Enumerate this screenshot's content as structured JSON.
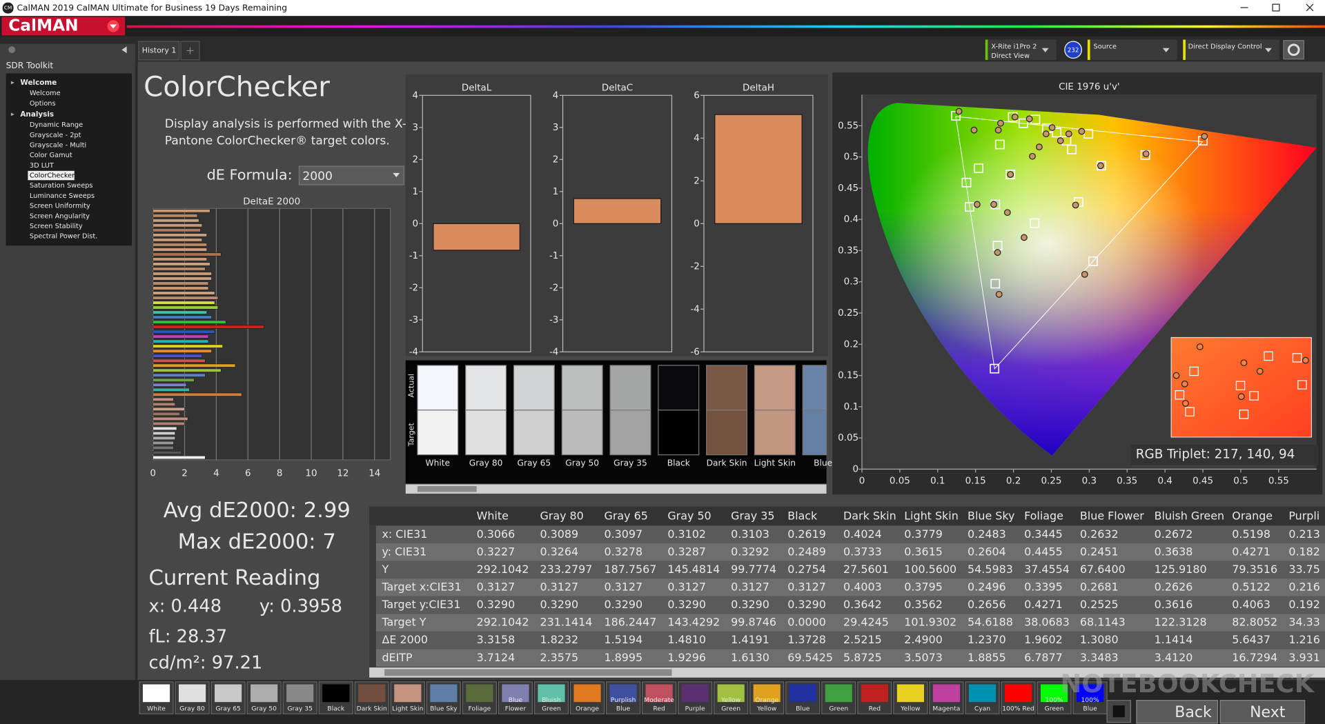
{
  "window": {
    "icon": "CM",
    "title": "CalMAN 2019 CalMAN Ultimate for Business 19 Days Remaining",
    "logo": "CalMAN"
  },
  "tabs": [
    "History 1"
  ],
  "devices": {
    "meter": [
      "X-Rite i1Pro 2",
      "Direct View"
    ],
    "badge": "232",
    "source": "Source",
    "display": "Direct Display Control"
  },
  "sidebar": {
    "title": "SDR Toolkit",
    "groups": [
      {
        "name": "Welcome",
        "items": [
          "Welcome",
          "Options"
        ]
      },
      {
        "name": "Analysis",
        "items": [
          "Dynamic Range",
          "Grayscale - 2pt",
          "Grayscale - Multi",
          "Color Gamut",
          "3D LUT",
          "ColorChecker",
          "Saturation Sweeps",
          "Luminance Sweeps",
          "Screen Uniformity",
          "Screen Angularity",
          "Screen Stability",
          "Spectral Power Dist."
        ],
        "selected": 5
      }
    ]
  },
  "page": {
    "heading": "ColorChecker",
    "description": [
      "Display analysis is performed with the X-Rite/",
      "Pantone ColorChecker® target colors."
    ],
    "formula_label": "dE Formula:",
    "formula_value": "2000"
  },
  "stats": {
    "avg": "Avg dE2000: 2.99",
    "max": "Max dE2000: 7",
    "reading_title": "Current Reading",
    "x": "x: 0.448",
    "y": "y: 0.3958",
    "fl": "fL: 28.37",
    "cdm2": "cd/m²: 97.21"
  },
  "chart_data": [
    {
      "type": "bar",
      "orientation": "horizontal",
      "title": "DeltaE 2000",
      "values": [
        3.6,
        2.8,
        2.9,
        3.1,
        3.0,
        3.4,
        3.1,
        3.4,
        3.4,
        4.3,
        3.4,
        3.6,
        3.3,
        3.7,
        3.7,
        3.5,
        3.5,
        3.9,
        4.1,
        3.9,
        4.1,
        3.4,
        3.7,
        4.6,
        7.0,
        3.9,
        3.5,
        3.5,
        4.4,
        3.7,
        3.1,
        3.3,
        5.2,
        4.3,
        3.3,
        2.6,
        2.1,
        2.3,
        5.6,
        1.3,
        1.4,
        2.0,
        1.7,
        2.2,
        2.0,
        1.5,
        1.4,
        1.4,
        1.3,
        1.3,
        1.8,
        3.3
      ],
      "colors": [
        "#c49a78",
        "#b88a68",
        "#c8a080",
        "#c49a78",
        "#b07a60",
        "#c8a080",
        "#c49a78",
        "#b88a68",
        "#c8a080",
        "#b07050",
        "#c49a78",
        "#c8a080",
        "#b88a68",
        "#c49a78",
        "#c8a080",
        "#b88a68",
        "#c49a78",
        "#c8a080",
        "#b88a68",
        "#d8d840",
        "#9acd32",
        "#40c0a0",
        "#4080c0",
        "#30c030",
        "#d02020",
        "#3050c0",
        "#c040c0",
        "#20b0c0",
        "#e0d020",
        "#e09030",
        "#5050d0",
        "#d05050",
        "#e0a020",
        "#a0c040",
        "#6080c0",
        "#70a050",
        "#8080d0",
        "#40b0a0",
        "#d08040",
        "#c09080",
        "#b08070",
        "#c8a090",
        "#a07060",
        "#c09080",
        "#b08070",
        "#e0e0e0",
        "#cccccc",
        "#b0b0b0",
        "#999999",
        "#777777",
        "#555555",
        "#f0f0f0"
      ],
      "xlim": [
        0,
        15
      ],
      "xticks": [
        0,
        2,
        4,
        6,
        8,
        10,
        12,
        14
      ],
      "grid": true
    },
    {
      "type": "bar",
      "title": "DeltaL",
      "values": [
        -0.83
      ],
      "color": "#d98c5e",
      "ylim": [
        -4,
        4
      ],
      "yticks": [
        -4,
        -3,
        -2,
        -1,
        0,
        1,
        2,
        3,
        4
      ]
    },
    {
      "type": "bar",
      "title": "DeltaC",
      "values": [
        0.78
      ],
      "color": "#d98c5e",
      "ylim": [
        -4,
        4
      ],
      "yticks": [
        -4,
        -3,
        -2,
        -1,
        0,
        1,
        2,
        3,
        4
      ]
    },
    {
      "type": "bar",
      "title": "DeltaH",
      "values": [
        5.1
      ],
      "color": "#d98c5e",
      "ylim": [
        -6,
        6
      ],
      "yticks": [
        -6,
        -4,
        -2,
        0,
        2,
        4,
        6
      ]
    },
    {
      "type": "scatter",
      "title": "CIE 1976 u'v'",
      "xlim": [
        0,
        0.6
      ],
      "ylim": [
        0,
        0.6
      ],
      "xticks": [
        0,
        0.05,
        0.1,
        0.15,
        0.2,
        0.25,
        0.3,
        0.35,
        0.4,
        0.45,
        0.5,
        0.55
      ],
      "yticks": [
        0,
        0.05,
        0.1,
        0.15,
        0.2,
        0.25,
        0.3,
        0.35,
        0.4,
        0.45,
        0.5,
        0.55
      ],
      "annotation": "RGB Triplet: 217, 140, 94",
      "series": [
        {
          "marker": "square",
          "color": "#ffffff",
          "x": [
            0.124,
            0.138,
            0.154,
            0.142,
            0.176,
            0.182,
            0.199,
            0.213,
            0.196,
            0.228,
            0.229,
            0.244,
            0.257,
            0.27,
            0.277,
            0.286,
            0.299,
            0.316,
            0.305,
            0.374,
            0.45,
            0.179,
            0.176,
            0.175
          ],
          "y": [
            0.566,
            0.459,
            0.482,
            0.42,
            0.424,
            0.52,
            0.564,
            0.554,
            0.472,
            0.394,
            0.56,
            0.546,
            0.539,
            0.526,
            0.512,
            0.428,
            0.537,
            0.486,
            0.333,
            0.503,
            0.526,
            0.358,
            0.297,
            0.161
          ]
        },
        {
          "marker": "circle",
          "color": "#c8946a",
          "x": [
            0.128,
            0.148,
            0.152,
            0.174,
            0.18,
            0.183,
            0.196,
            0.202,
            0.221,
            0.225,
            0.234,
            0.243,
            0.251,
            0.262,
            0.273,
            0.29,
            0.192,
            0.214,
            0.282,
            0.294,
            0.315,
            0.375,
            0.452,
            0.179,
            0.181
          ],
          "y": [
            0.573,
            0.543,
            0.424,
            0.424,
            0.543,
            0.554,
            0.472,
            0.564,
            0.561,
            0.501,
            0.516,
            0.537,
            0.547,
            0.526,
            0.537,
            0.541,
            0.411,
            0.371,
            0.423,
            0.312,
            0.486,
            0.505,
            0.533,
            0.347,
            0.28
          ]
        }
      ]
    }
  ],
  "swatch_panel": {
    "actual_label": "Actual",
    "target_label": "Target",
    "swatches": [
      {
        "name": "White",
        "actual": "#f4f5fa",
        "target": "#f2f2f2"
      },
      {
        "name": "Gray 80",
        "actual": "#e2e4e6",
        "target": "#e0e0e0"
      },
      {
        "name": "Gray 65",
        "actual": "#d0d2d3",
        "target": "#cfcfcf"
      },
      {
        "name": "Gray 50",
        "actual": "#bcbdbd",
        "target": "#bbbbbb"
      },
      {
        "name": "Gray 35",
        "actual": "#a5a6a6",
        "target": "#a3a3a3"
      },
      {
        "name": "Black",
        "actual": "#0a0a0c",
        "target": "#000000"
      },
      {
        "name": "Dark Skin",
        "actual": "#7a5846",
        "target": "#73523f"
      },
      {
        "name": "Light Skin",
        "actual": "#c79a86",
        "target": "#c2967f"
      },
      {
        "name": "Blue",
        "actual": "#6a84a8",
        "target": "#6580a5"
      }
    ]
  },
  "table": {
    "header": [
      "White",
      "Gray 80",
      "Gray 65",
      "Gray 50",
      "Gray 35",
      "Black",
      "Dark Skin",
      "Light Skin",
      "Blue Sky",
      "Foliage",
      "Blue Flower",
      "Bluish Green",
      "Orange",
      "Purpli"
    ],
    "rows": [
      [
        "x: CIE31",
        "0.3066",
        "0.3089",
        "0.3097",
        "0.3102",
        "0.3103",
        "0.2619",
        "0.4024",
        "0.3779",
        "0.2483",
        "0.3445",
        "0.2632",
        "0.2672",
        "0.5198",
        "0.213"
      ],
      [
        "y: CIE31",
        "0.3227",
        "0.3264",
        "0.3278",
        "0.3287",
        "0.3292",
        "0.2489",
        "0.3733",
        "0.3615",
        "0.2604",
        "0.4455",
        "0.2451",
        "0.3638",
        "0.4271",
        "0.182"
      ],
      [
        "Y",
        "292.1042",
        "233.2797",
        "187.7567",
        "145.4814",
        "99.7774",
        "0.2754",
        "27.5601",
        "100.5600",
        "54.5983",
        "37.4554",
        "67.6400",
        "125.9180",
        "79.3516",
        "33.75"
      ],
      [
        "Target x:CIE31",
        "0.3127",
        "0.3127",
        "0.3127",
        "0.3127",
        "0.3127",
        "0.3127",
        "0.4003",
        "0.3795",
        "0.2496",
        "0.3395",
        "0.2681",
        "0.2626",
        "0.5122",
        "0.216"
      ],
      [
        "Target y:CIE31",
        "0.3290",
        "0.3290",
        "0.3290",
        "0.3290",
        "0.3290",
        "0.3290",
        "0.3642",
        "0.3562",
        "0.2656",
        "0.4271",
        "0.2525",
        "0.3616",
        "0.4063",
        "0.192"
      ],
      [
        "Target Y",
        "292.1042",
        "231.1414",
        "186.2447",
        "143.4292",
        "99.8746",
        "0.0000",
        "29.4245",
        "101.9302",
        "54.6188",
        "38.0683",
        "68.1143",
        "122.3128",
        "82.8052",
        "34.33"
      ],
      [
        "ΔE 2000",
        "3.3158",
        "1.8232",
        "1.5194",
        "1.4810",
        "1.4191",
        "1.3728",
        "2.5215",
        "2.4900",
        "1.2370",
        "1.9602",
        "1.3080",
        "1.1414",
        "5.6437",
        "1.216"
      ],
      [
        "dEITP",
        "3.7124",
        "2.3575",
        "1.8995",
        "1.9296",
        "1.6130",
        "69.5425",
        "5.8725",
        "3.5073",
        "1.8855",
        "6.7877",
        "3.3483",
        "3.4120",
        "16.7294",
        "3.931"
      ]
    ]
  },
  "strip": [
    {
      "label": [
        "White"
      ],
      "color": "#ffffff"
    },
    {
      "label": [
        "Gray 80"
      ],
      "color": "#e0e0e0"
    },
    {
      "label": [
        "Gray 65"
      ],
      "color": "#c8c8c8"
    },
    {
      "label": [
        "Gray 50"
      ],
      "color": "#adadad"
    },
    {
      "label": [
        "Gray 35"
      ],
      "color": "#888888"
    },
    {
      "label": [
        "Black"
      ],
      "color": "#000000"
    },
    {
      "label": [
        "Dark Skin"
      ],
      "color": "#734f3f"
    },
    {
      "label": [
        "Light Skin"
      ],
      "color": "#c59480"
    },
    {
      "label": [
        "Blue Sky"
      ],
      "color": "#5f7fa8"
    },
    {
      "label": [
        "Foliage"
      ],
      "color": "#5a6b3e"
    },
    {
      "label": [
        "Blue",
        "Flower"
      ],
      "color": "#8080b0"
    },
    {
      "label": [
        "Bluish",
        "Green"
      ],
      "color": "#60c0a8"
    },
    {
      "label": [
        "Orange"
      ],
      "color": "#e07a20"
    },
    {
      "label": [
        "Purplish",
        "Blue"
      ],
      "color": "#4050a0"
    },
    {
      "label": [
        "Moderate",
        "Red"
      ],
      "color": "#c05060"
    },
    {
      "label": [
        "Purple"
      ],
      "color": "#5a3070"
    },
    {
      "label": [
        "Yellow",
        "Green"
      ],
      "color": "#a0c040"
    },
    {
      "label": [
        "Orange",
        "Yellow"
      ],
      "color": "#e0a020"
    },
    {
      "label": [
        "Blue"
      ],
      "color": "#2030a0"
    },
    {
      "label": [
        "Green"
      ],
      "color": "#40a040"
    },
    {
      "label": [
        "Red"
      ],
      "color": "#c02020"
    },
    {
      "label": [
        "Yellow"
      ],
      "color": "#e8d020"
    },
    {
      "label": [
        "Magenta"
      ],
      "color": "#c040a0"
    },
    {
      "label": [
        "Cyan"
      ],
      "color": "#0090b0"
    },
    {
      "label": [
        "100% Red"
      ],
      "color": "#ff0000"
    },
    {
      "label": [
        "100%",
        "Green"
      ],
      "color": "#00ff00"
    },
    {
      "label": [
        "100%",
        "Blue"
      ],
      "color": "#0000ff"
    }
  ],
  "buttons": {
    "back": "Back",
    "next": "Next"
  },
  "watermark": "NOTEBOOKCHECK"
}
